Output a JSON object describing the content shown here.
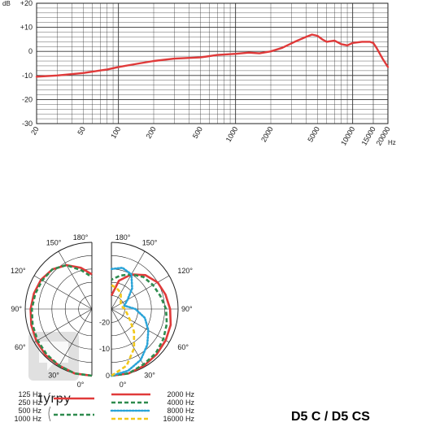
{
  "chart_data": [
    {
      "type": "line",
      "title": "",
      "xlabel": "Hz",
      "ylabel": "dB",
      "x_scale": "log",
      "xlim": [
        20,
        20000
      ],
      "ylim": [
        -30,
        20
      ],
      "y_ticks": [
        "+20",
        "+10",
        "0",
        "-10",
        "-20",
        "-30"
      ],
      "x_ticks": [
        "20",
        "50",
        "100",
        "200",
        "500",
        "1000",
        "2000",
        "5000",
        "10000",
        "15000",
        "20000"
      ],
      "grid": true,
      "line_color": "#e03a3a",
      "series": [
        {
          "x": [
            20,
            30,
            50,
            80,
            100,
            150,
            200,
            300,
            500,
            700,
            1000,
            1300,
            1600,
            2000,
            2500,
            3200,
            4000,
            4500,
            5000,
            5500,
            6000,
            7000,
            8000,
            9000,
            10000,
            12000,
            14000,
            15000,
            16000,
            18000,
            20000
          ],
          "y": [
            -10.5,
            -10,
            -9,
            -7.5,
            -6.5,
            -5,
            -4,
            -3,
            -2.5,
            -1.5,
            -1,
            -0.5,
            -0.8,
            0,
            1.5,
            4,
            6,
            7,
            6.5,
            5,
            4,
            4.5,
            3,
            2.5,
            3.5,
            4,
            4,
            3.5,
            1.5,
            -3,
            -6.5
          ]
        }
      ]
    },
    {
      "type": "polar",
      "title": "",
      "angle_ticks_left": [
        "180°",
        "150°",
        "120°",
        "90°",
        "60°",
        "30°",
        "0°"
      ],
      "angle_ticks_right": [
        "180°",
        "150°",
        "120°",
        "90°",
        "60°",
        "30°",
        "0°"
      ],
      "radial_ticks": [
        "0",
        "-10",
        "-20"
      ],
      "rlim": [
        -25,
        0
      ],
      "legend_left": [
        {
          "label": "125 Hz"
        },
        {
          "label": "250 Hz"
        },
        {
          "label": "500 Hz"
        },
        {
          "label": "1000 Hz"
        }
      ],
      "legend_right": [
        {
          "label": "2000 Hz",
          "color": "#e03a3a",
          "style": "solid"
        },
        {
          "label": "4000 Hz",
          "color": "#2e8b4e",
          "style": "dashed"
        },
        {
          "label": "8000 Hz",
          "color": "#2aa4d8",
          "style": "dotted"
        },
        {
          "label": "16000 Hz",
          "color": "#f2c81a",
          "style": "dashed"
        }
      ],
      "series_left": [
        {
          "name": "125 Hz",
          "color": "#e03a3a",
          "style": "solid",
          "angles": [
            0,
            15,
            30,
            45,
            60,
            75,
            90,
            105,
            120,
            135,
            150,
            165,
            180
          ],
          "levels": [
            0,
            0,
            -0.5,
            -0.5,
            -1,
            -1.5,
            -2,
            -2.5,
            -3,
            -4,
            -6,
            -9,
            -12
          ]
        },
        {
          "name": "1000 Hz",
          "color": "#2e8b4e",
          "style": "dashed",
          "angles": [
            0,
            15,
            30,
            45,
            60,
            75,
            90,
            105,
            120,
            135,
            150,
            165,
            180
          ],
          "levels": [
            0,
            0,
            -0.5,
            -1,
            -1.5,
            -2,
            -2.5,
            -3,
            -3.5,
            -4,
            -6,
            -10,
            -13
          ]
        }
      ],
      "series_right": [
        {
          "name": "2000 Hz",
          "color": "#e03a3a",
          "style": "solid",
          "angles": [
            0,
            15,
            30,
            45,
            60,
            75,
            90,
            105,
            120,
            135,
            150,
            165,
            180
          ],
          "levels": [
            0,
            0,
            -0.5,
            -1,
            -1.5,
            -2,
            -3,
            -4,
            -5,
            -7,
            -10,
            -14,
            -20
          ]
        },
        {
          "name": "4000 Hz",
          "color": "#2e8b4e",
          "style": "dashed",
          "angles": [
            0,
            15,
            30,
            45,
            60,
            75,
            90,
            105,
            120,
            135,
            150,
            165,
            180
          ],
          "levels": [
            0,
            0,
            -1,
            -1.5,
            -2.5,
            -3.5,
            -4.5,
            -6,
            -7,
            -8,
            -10,
            -12,
            -14
          ]
        },
        {
          "name": "8000 Hz",
          "color": "#2aa4d8",
          "style": "dotted",
          "angles": [
            0,
            15,
            30,
            45,
            60,
            75,
            90,
            105,
            120,
            135,
            150,
            165,
            180
          ],
          "levels": [
            0,
            -1,
            -3,
            -6,
            -9,
            -12,
            -16,
            -20,
            -18,
            -14,
            -10,
            -9,
            -10
          ]
        },
        {
          "name": "16000 Hz",
          "color": "#f2c81a",
          "style": "dashed",
          "angles": [
            0,
            15,
            30,
            45,
            60,
            75,
            90,
            105,
            120,
            135,
            150,
            165,
            180
          ],
          "levels": [
            0,
            -3,
            -8,
            -13,
            -17,
            -19,
            -20,
            -21,
            -21,
            -20,
            -18,
            -17,
            -16
          ]
        }
      ]
    }
  ],
  "model_name": "D5 C / D5 CS",
  "watermark": "tyrpy"
}
